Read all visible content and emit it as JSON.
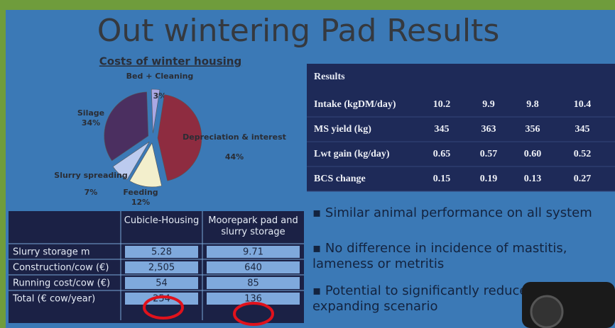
{
  "title": "Out wintering Pad Results",
  "chart_data": {
    "type": "pie",
    "title": "Costs of winter housing",
    "categories": [
      "Bed + Cleaning",
      "Depreciation & interest",
      "Feeding",
      "Slurry spreading",
      "Silage"
    ],
    "values": [
      3,
      44,
      12,
      7,
      34
    ],
    "value_labels": [
      "3%",
      "44%",
      "12%",
      "7%",
      "34%"
    ],
    "colors": [
      "#aaa8e4",
      "#8e2c40",
      "#f3efcc",
      "#bccbef",
      "#4b2f60"
    ]
  },
  "results_table": {
    "header": "Results",
    "rows": [
      [
        "Intake (kgDM/day)",
        "10.2",
        "9.9",
        "9.8",
        "10.4"
      ],
      [
        "MS yield (kg)",
        "345",
        "363",
        "356",
        "345"
      ],
      [
        "Lwt gain (kg/day)",
        "0.65",
        "0.57",
        "0.60",
        "0.52"
      ],
      [
        "BCS change",
        "0.15",
        "0.19",
        "0.13",
        "0.27"
      ]
    ]
  },
  "cost_table": {
    "columns": [
      "Cubicle-Housing",
      "Moorepark pad and slurry storage"
    ],
    "rows": [
      [
        "Slurry storage m",
        "5.28",
        "9.71"
      ],
      [
        "Construction/cow  (€)",
        "2,505",
        "640"
      ],
      [
        "Running cost/cow (€)",
        "54",
        "85"
      ],
      [
        "Total (€ cow/year)",
        "254",
        "136"
      ]
    ]
  },
  "bullets": [
    "Similar animal performance on all system",
    "No difference in incidence of mastitis, lameness or metritis",
    "Potential to significantly reduce cost in expanding scenario"
  ]
}
